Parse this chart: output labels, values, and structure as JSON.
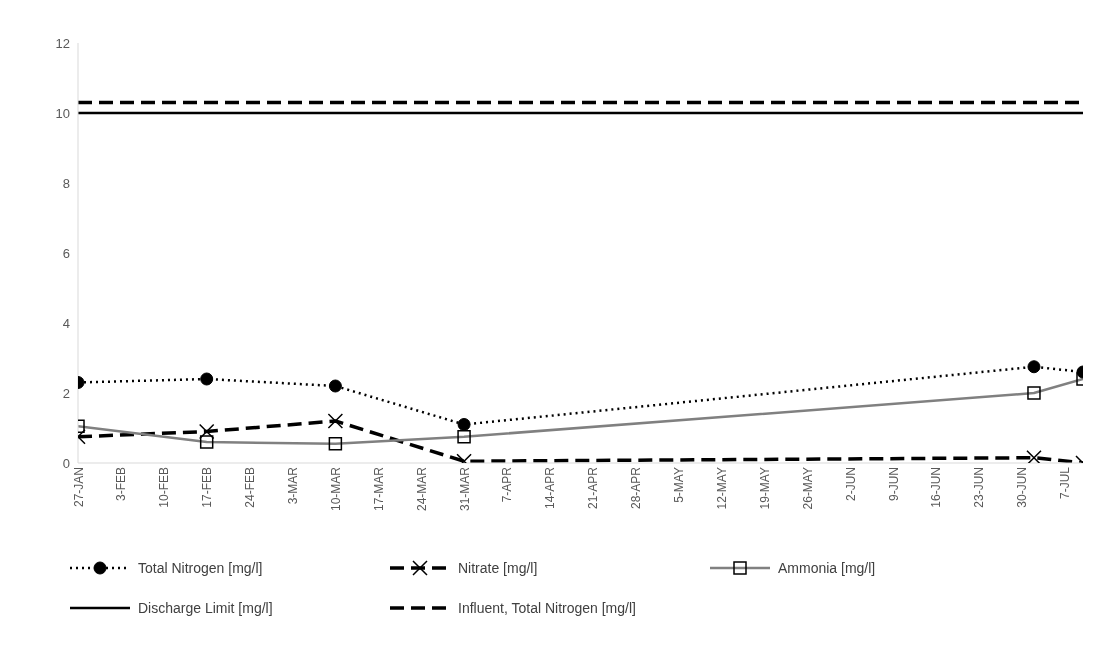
{
  "chart_data": {
    "type": "line",
    "xlim": [
      "--01-27",
      "--07-10"
    ],
    "xticks": [
      {
        "value": "--01-27",
        "label": "27-JAN"
      },
      {
        "value": "--02-03",
        "label": "3-FEB"
      },
      {
        "value": "--02-10",
        "label": "10-FEB"
      },
      {
        "value": "--02-17",
        "label": "17-FEB"
      },
      {
        "value": "--02-24",
        "label": "24-FEB"
      },
      {
        "value": "--03-03",
        "label": "3-MAR"
      },
      {
        "value": "--03-10",
        "label": "10-MAR"
      },
      {
        "value": "--03-17",
        "label": "17-MAR"
      },
      {
        "value": "--03-24",
        "label": "24-MAR"
      },
      {
        "value": "--03-31",
        "label": "31-MAR"
      },
      {
        "value": "--04-07",
        "label": "7-APR"
      },
      {
        "value": "--04-14",
        "label": "14-APR"
      },
      {
        "value": "--04-21",
        "label": "21-APR"
      },
      {
        "value": "--04-28",
        "label": "28-APR"
      },
      {
        "value": "--05-05",
        "label": "5-MAY"
      },
      {
        "value": "--05-12",
        "label": "12-MAY"
      },
      {
        "value": "--05-19",
        "label": "19-MAY"
      },
      {
        "value": "--05-26",
        "label": "26-MAY"
      },
      {
        "value": "--06-02",
        "label": "2-JUN"
      },
      {
        "value": "--06-09",
        "label": "9-JUN"
      },
      {
        "value": "--06-16",
        "label": "16-JUN"
      },
      {
        "value": "--06-23",
        "label": "23-JUN"
      },
      {
        "value": "--06-30",
        "label": "30-JUN"
      },
      {
        "value": "--07-07",
        "label": "7-JUL"
      }
    ],
    "ylim": [
      0,
      12
    ],
    "yticks": [
      0,
      2,
      4,
      6,
      8,
      10,
      12
    ],
    "grid": false,
    "legend": "bottom",
    "series": [
      {
        "name": "Total Nitrogen [mg/l]",
        "color": "#000000",
        "marker": "circle",
        "line_style": "dotted",
        "x": [
          "--01-27",
          "--02-17",
          "--03-10",
          "--03-31",
          "--07-02",
          "--07-10"
        ],
        "values": [
          2.3,
          2.4,
          2.2,
          1.1,
          2.75,
          2.6
        ]
      },
      {
        "name": "Nitrate [mg/l]",
        "color": "#000000",
        "marker": "cross",
        "line_style": "dashed",
        "x": [
          "--01-27",
          "--02-17",
          "--03-10",
          "--03-31",
          "--07-02",
          "--07-10"
        ],
        "values": [
          0.75,
          0.9,
          1.2,
          0.05,
          0.15,
          0.0
        ]
      },
      {
        "name": "Ammonia [mg/l]",
        "color": "#808080",
        "marker": "square",
        "line_style": "solid",
        "x": [
          "--01-27",
          "--02-17",
          "--03-10",
          "--03-31",
          "--07-02",
          "--07-10"
        ],
        "values": [
          1.05,
          0.6,
          0.55,
          0.75,
          2.0,
          2.4
        ]
      },
      {
        "name": "Discharge Limit [mg/l]",
        "color": "#000000",
        "marker": "none",
        "line_style": "solid",
        "x": [
          "--01-27",
          "--07-10"
        ],
        "values": [
          10,
          10
        ]
      },
      {
        "name": "Influent, Total Nitrogen [mg/l]",
        "color": "#000000",
        "marker": "none",
        "line_style": "dashed",
        "x": [
          "--01-27",
          "--07-10"
        ],
        "values": [
          10.3,
          10.3
        ]
      }
    ]
  }
}
